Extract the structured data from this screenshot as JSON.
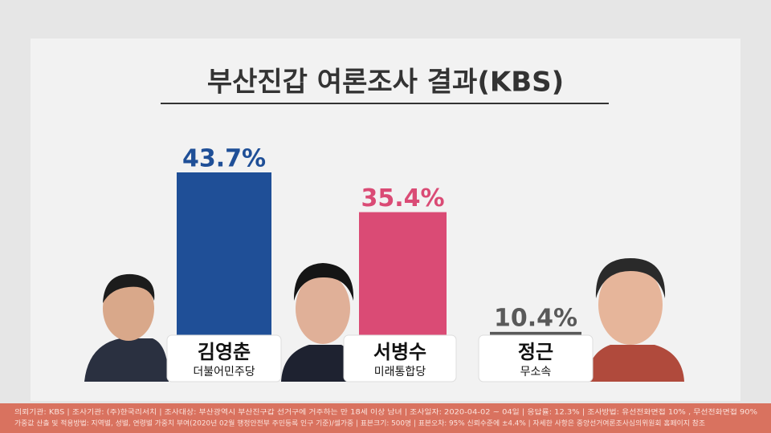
{
  "chart_data": {
    "type": "bar",
    "title": "부산진갑 여론조사 결과(KBS)",
    "categories": [
      "김영춘",
      "서병수",
      "정근"
    ],
    "parties": [
      "더불어민주당",
      "미래통합당",
      "무소속"
    ],
    "values": [
      43.7,
      35.4,
      10.4
    ],
    "value_labels": [
      "43.7%",
      "35.4%",
      "10.4%"
    ],
    "colors": [
      "#1f4f97",
      "#da4b75",
      "#595959"
    ]
  },
  "footer": [
    "의뢰기관: KBS | 조사기관: (주)한국리서치 | 조사대상: 부산광역시 부산진구갑 선거구에 거주하는 만 18세 이상 남녀 | 조사일자: 2020-04-02 ~ 04일 | 응답률: 12.3% | 조사방법: 유선전화면접 10% , 무선전화면접 90%",
    "가중값 산출 및 적용방법: 지역별, 성별, 연령별 가중치 부여(2020년 02월 행정안전부 주민등록 인구 기준)/셀가중 | 표본크기: 500명 | 표본오차: 95% 신뢰수준에 ±4.4% | 자세한 사항은 중앙선거여론조사심의위원회 홈페이지 참조"
  ]
}
